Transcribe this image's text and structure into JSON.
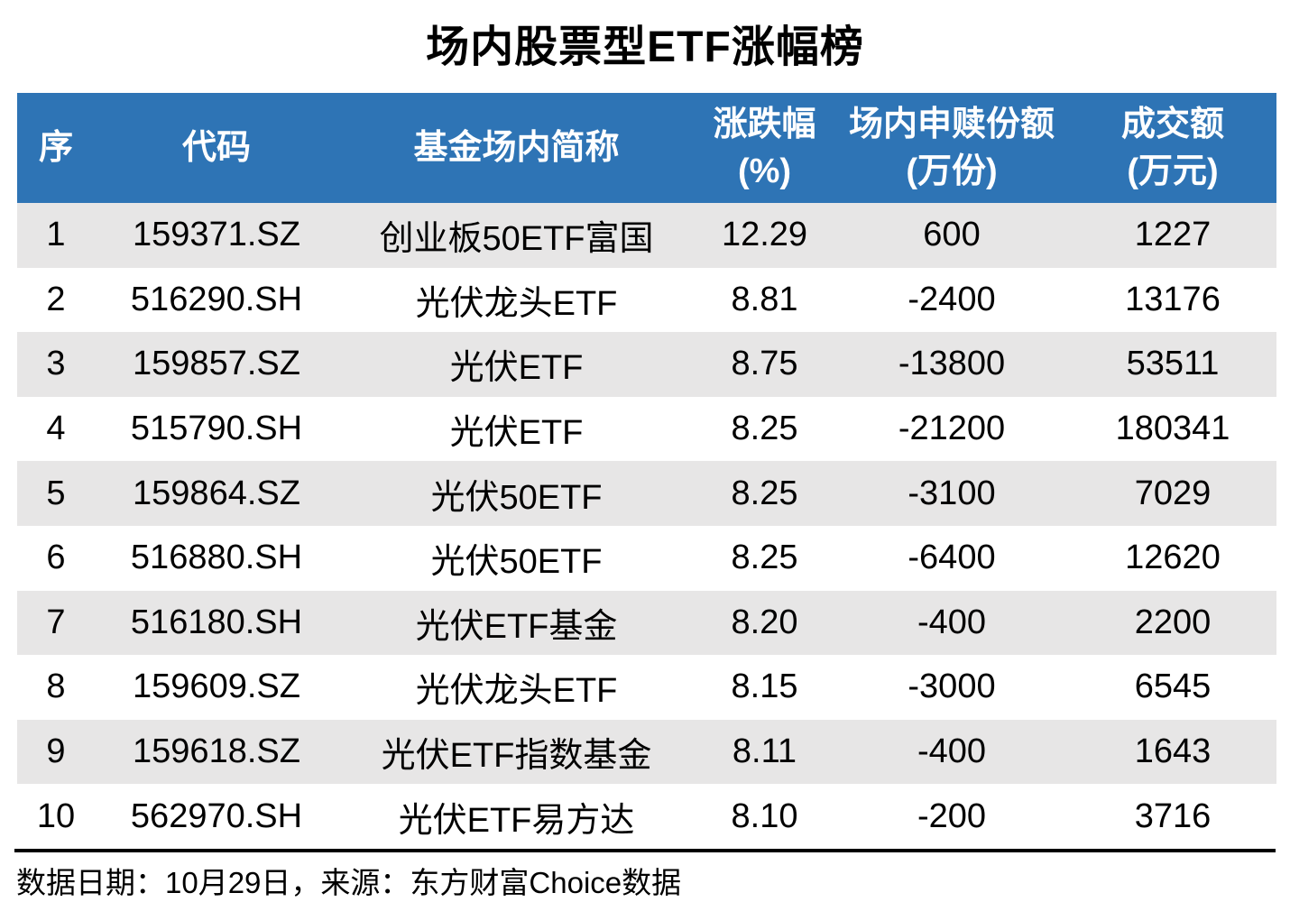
{
  "title": "场内股票型ETF涨幅榜",
  "colors": {
    "header_bg": "#2E74B5",
    "header_text": "#FFFFFF",
    "row_bg": "#FFFFFF",
    "row_alt_bg": "#E7E6E6",
    "text": "#000000"
  },
  "table": {
    "columns": [
      {
        "label": "序",
        "unit": ""
      },
      {
        "label": "代码",
        "unit": ""
      },
      {
        "label": "基金场内简称",
        "unit": ""
      },
      {
        "label": "涨跌幅",
        "unit": "(%)"
      },
      {
        "label": "场内申赎份额",
        "unit": "(万份)"
      },
      {
        "label": "成交额",
        "unit": "(万元)"
      }
    ],
    "rows": [
      [
        "1",
        "159371.SZ",
        "创业板50ETF富国",
        "12.29",
        "600",
        "1227"
      ],
      [
        "2",
        "516290.SH",
        "光伏龙头ETF",
        "8.81",
        "-2400",
        "13176"
      ],
      [
        "3",
        "159857.SZ",
        "光伏ETF",
        "8.75",
        "-13800",
        "53511"
      ],
      [
        "4",
        "515790.SH",
        "光伏ETF",
        "8.25",
        "-21200",
        "180341"
      ],
      [
        "5",
        "159864.SZ",
        "光伏50ETF",
        "8.25",
        "-3100",
        "7029"
      ],
      [
        "6",
        "516880.SH",
        "光伏50ETF",
        "8.25",
        "-6400",
        "12620"
      ],
      [
        "7",
        "516180.SH",
        "光伏ETF基金",
        "8.20",
        "-400",
        "2200"
      ],
      [
        "8",
        "159609.SZ",
        "光伏龙头ETF",
        "8.15",
        "-3000",
        "6545"
      ],
      [
        "9",
        "159618.SZ",
        "光伏ETF指数基金",
        "8.11",
        "-400",
        "1643"
      ],
      [
        "10",
        "562970.SH",
        "光伏ETF易方达",
        "8.10",
        "-200",
        "3716"
      ]
    ]
  },
  "footer": {
    "note": "数据日期：10月29日，来源：东方财富Choice数据"
  },
  "chart_data": {
    "type": "table",
    "title": "场内股票型ETF涨幅榜",
    "columns": [
      "序",
      "代码",
      "基金场内简称",
      "涨跌幅(%)",
      "场内申赎份额(万份)",
      "成交额(万元)"
    ],
    "rows": [
      [
        1,
        "159371.SZ",
        "创业板50ETF富国",
        12.29,
        600,
        1227
      ],
      [
        2,
        "516290.SH",
        "光伏龙头ETF",
        8.81,
        -2400,
        13176
      ],
      [
        3,
        "159857.SZ",
        "光伏ETF",
        8.75,
        -13800,
        53511
      ],
      [
        4,
        "515790.SH",
        "光伏ETF",
        8.25,
        -21200,
        180341
      ],
      [
        5,
        "159864.SZ",
        "光伏50ETF",
        8.25,
        -3100,
        7029
      ],
      [
        6,
        "516880.SH",
        "光伏50ETF",
        8.25,
        -6400,
        12620
      ],
      [
        7,
        "516180.SH",
        "光伏ETF基金",
        8.2,
        -400,
        2200
      ],
      [
        8,
        "159609.SZ",
        "光伏龙头ETF",
        8.15,
        -3000,
        6545
      ],
      [
        9,
        "159618.SZ",
        "光伏ETF指数基金",
        8.11,
        -400,
        1643
      ],
      [
        10,
        "562970.SH",
        "光伏ETF易方达",
        8.1,
        -200,
        3716
      ]
    ],
    "source_note": "数据日期：10月29日，来源：东方财富Choice数据",
    "layout": {
      "zebra_striping": true,
      "header_color": "#2E74B5",
      "stripe_color": "#E7E6E6"
    }
  }
}
